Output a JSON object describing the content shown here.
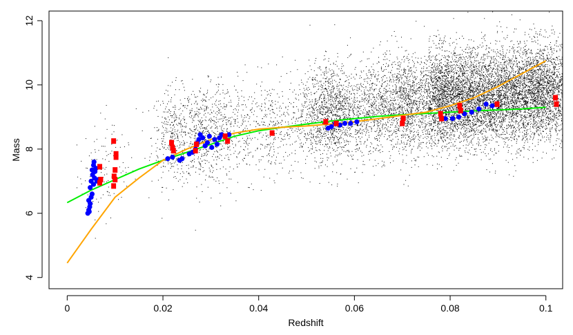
{
  "chart_data": {
    "type": "scatter",
    "title": "",
    "xlabel": "Redshift",
    "ylabel": "Mass",
    "xlim": [
      -0.0038,
      0.1035
    ],
    "ylim": [
      3.65,
      12.3
    ],
    "xticks": [
      0,
      0.02,
      0.04,
      0.06,
      0.08,
      0.1
    ],
    "xtick_labels": [
      "0",
      "0.02",
      "0.04",
      "0.06",
      "0.08",
      "0.1"
    ],
    "yticks": [
      4,
      6,
      8,
      10,
      12
    ],
    "ytick_labels": [
      "4",
      "6",
      "8",
      "10",
      "12"
    ],
    "grid": false,
    "legend": "none",
    "colors": {
      "background_points": "#000000",
      "blue_points": "#0000ff",
      "red_points": "#ff0000",
      "green_curve": "#00ee00",
      "orange_curve": "#ffa500"
    },
    "background_clusters": [
      {
        "x": 0.0065,
        "y": 7.2,
        "n": 60
      },
      {
        "x": 0.0095,
        "y": 7.5,
        "n": 60
      },
      {
        "x": 0.022,
        "y": 8.4,
        "n": 350
      },
      {
        "x": 0.028,
        "y": 8.5,
        "n": 400
      },
      {
        "x": 0.033,
        "y": 8.6,
        "n": 250
      },
      {
        "x": 0.038,
        "y": 8.6,
        "n": 150
      },
      {
        "x": 0.043,
        "y": 8.7,
        "n": 220
      },
      {
        "x": 0.05,
        "y": 8.9,
        "n": 300
      },
      {
        "x": 0.055,
        "y": 9.2,
        "n": 900
      },
      {
        "x": 0.06,
        "y": 9.0,
        "n": 350
      },
      {
        "x": 0.065,
        "y": 9.3,
        "n": 600
      },
      {
        "x": 0.071,
        "y": 9.4,
        "n": 900
      },
      {
        "x": 0.078,
        "y": 9.6,
        "n": 1500
      },
      {
        "x": 0.083,
        "y": 9.6,
        "n": 1300
      },
      {
        "x": 0.088,
        "y": 9.6,
        "n": 1200
      },
      {
        "x": 0.093,
        "y": 9.7,
        "n": 1200
      },
      {
        "x": 0.098,
        "y": 9.8,
        "n": 1300
      },
      {
        "x": 0.102,
        "y": 9.8,
        "n": 800
      }
    ],
    "series": [
      {
        "marker": "circle",
        "color": "#0000ff",
        "points": [
          [
            0.0043,
            6.0
          ],
          [
            0.0045,
            6.1
          ],
          [
            0.0047,
            6.2
          ],
          [
            0.0045,
            6.4
          ],
          [
            0.005,
            6.5
          ],
          [
            0.0052,
            6.6
          ],
          [
            0.0048,
            6.8
          ],
          [
            0.0055,
            6.9
          ],
          [
            0.005,
            7.0
          ],
          [
            0.0057,
            7.1
          ],
          [
            0.0053,
            7.2
          ],
          [
            0.0058,
            7.3
          ],
          [
            0.0052,
            7.35
          ],
          [
            0.006,
            7.4
          ],
          [
            0.0055,
            7.5
          ],
          [
            0.0062,
            7.0
          ],
          [
            0.0065,
            7.05
          ],
          [
            0.0048,
            6.3
          ],
          [
            0.0046,
            6.05
          ],
          [
            0.0056,
            7.6
          ],
          [
            0.021,
            7.7
          ],
          [
            0.022,
            7.75
          ],
          [
            0.0235,
            7.65
          ],
          [
            0.024,
            7.7
          ],
          [
            0.0255,
            7.85
          ],
          [
            0.0262,
            7.9
          ],
          [
            0.0268,
            8.0
          ],
          [
            0.0272,
            8.2
          ],
          [
            0.0275,
            8.3
          ],
          [
            0.0278,
            8.45
          ],
          [
            0.0283,
            8.35
          ],
          [
            0.0288,
            8.1
          ],
          [
            0.0293,
            8.2
          ],
          [
            0.0297,
            8.4
          ],
          [
            0.0302,
            8.05
          ],
          [
            0.0308,
            8.3
          ],
          [
            0.0313,
            8.15
          ],
          [
            0.0318,
            8.35
          ],
          [
            0.0323,
            8.45
          ],
          [
            0.033,
            8.4
          ],
          [
            0.0338,
            8.45
          ],
          [
            0.0545,
            8.65
          ],
          [
            0.0552,
            8.7
          ],
          [
            0.056,
            8.8
          ],
          [
            0.057,
            8.75
          ],
          [
            0.058,
            8.8
          ],
          [
            0.0592,
            8.8
          ],
          [
            0.0605,
            8.85
          ],
          [
            0.079,
            8.95
          ],
          [
            0.0805,
            8.95
          ],
          [
            0.0818,
            9.0
          ],
          [
            0.083,
            9.1
          ],
          [
            0.0845,
            9.15
          ],
          [
            0.086,
            9.25
          ],
          [
            0.0875,
            9.4
          ],
          [
            0.0888,
            9.35
          ]
        ]
      },
      {
        "marker": "square",
        "color": "#ff0000",
        "points": [
          [
            0.0068,
            7.45
          ],
          [
            0.007,
            7.05
          ],
          [
            0.0068,
            6.95
          ],
          [
            0.0097,
            8.25
          ],
          [
            0.0102,
            7.85
          ],
          [
            0.0102,
            7.75
          ],
          [
            0.01,
            7.35
          ],
          [
            0.0098,
            7.15
          ],
          [
            0.01,
            7.05
          ],
          [
            0.0097,
            6.85
          ],
          [
            0.0218,
            8.2
          ],
          [
            0.022,
            8.05
          ],
          [
            0.0222,
            7.95
          ],
          [
            0.027,
            8.15
          ],
          [
            0.0268,
            7.95
          ],
          [
            0.033,
            8.4
          ],
          [
            0.0335,
            8.25
          ],
          [
            0.0428,
            8.5
          ],
          [
            0.054,
            8.85
          ],
          [
            0.0562,
            8.8
          ],
          [
            0.0702,
            8.95
          ],
          [
            0.07,
            8.8
          ],
          [
            0.078,
            9.1
          ],
          [
            0.0782,
            8.95
          ],
          [
            0.082,
            9.35
          ],
          [
            0.0822,
            9.2
          ],
          [
            0.0898,
            9.4
          ],
          [
            0.102,
            9.6
          ],
          [
            0.1022,
            9.4
          ]
        ]
      },
      {
        "marker": "line",
        "color": "#00ee00",
        "x": [
          0.0,
          0.005,
          0.01,
          0.015,
          0.02,
          0.025,
          0.03,
          0.035,
          0.04,
          0.045,
          0.05,
          0.055,
          0.06,
          0.065,
          0.07,
          0.075,
          0.08,
          0.085,
          0.09,
          0.095,
          0.1
        ],
        "y": [
          6.33,
          6.72,
          7.05,
          7.38,
          7.65,
          7.9,
          8.15,
          8.4,
          8.57,
          8.68,
          8.78,
          8.87,
          8.95,
          9.02,
          9.07,
          9.11,
          9.15,
          9.19,
          9.22,
          9.25,
          9.3
        ]
      },
      {
        "marker": "line",
        "color": "#ffa500",
        "x": [
          0.0,
          0.005,
          0.01,
          0.015,
          0.02,
          0.025,
          0.03,
          0.035,
          0.04,
          0.045,
          0.05,
          0.055,
          0.06,
          0.065,
          0.07,
          0.075,
          0.08,
          0.085,
          0.09,
          0.095,
          0.1
        ],
        "y": [
          4.45,
          5.5,
          6.5,
          7.1,
          7.65,
          8.0,
          8.3,
          8.5,
          8.62,
          8.68,
          8.72,
          8.78,
          8.85,
          8.95,
          9.05,
          9.15,
          9.35,
          9.6,
          9.95,
          10.35,
          10.75
        ]
      }
    ]
  }
}
